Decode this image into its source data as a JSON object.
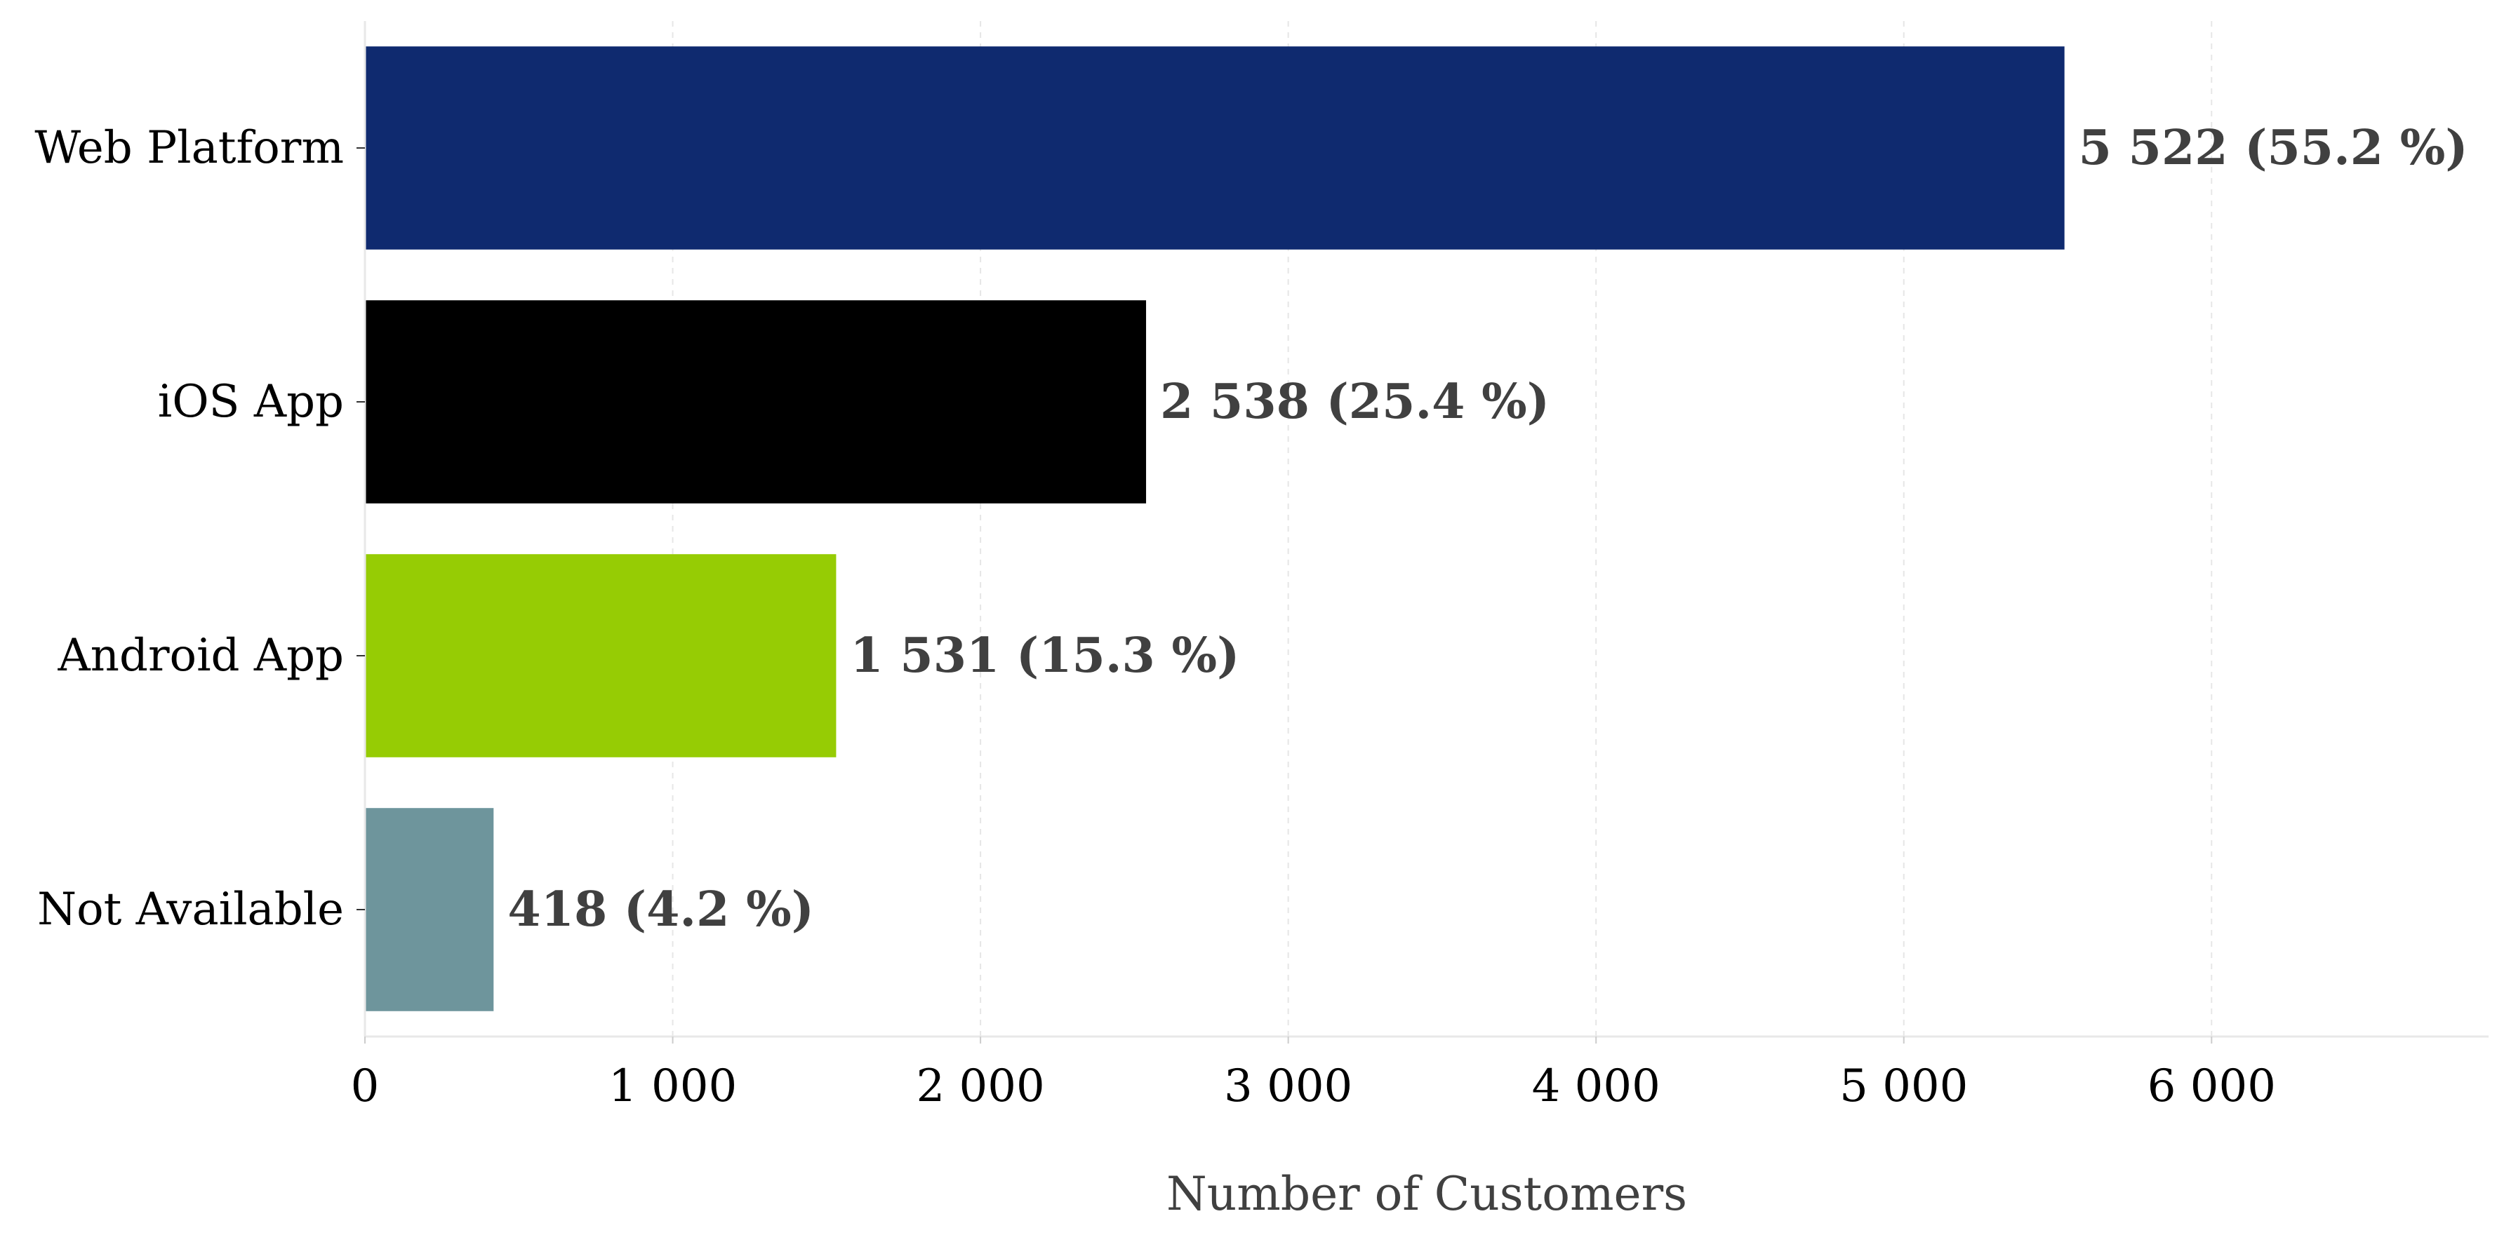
{
  "chart_data": {
    "type": "bar",
    "orientation": "horizontal",
    "categories": [
      "Web Platform",
      "iOS App",
      "Android App",
      "Not Available"
    ],
    "values": [
      5522,
      2538,
      1531,
      418
    ],
    "value_labels": [
      "5 522 (55.2 %)",
      "2 538 (25.4 %)",
      "1 531 (15.3 %)",
      "418 (4.2 %)"
    ],
    "colors": [
      "#0f2a6f",
      "#000000",
      "#96cc04",
      "#6e959c"
    ],
    "xlabel": "Number of Customers",
    "ylabel": "",
    "xlim": [
      0,
      6900
    ],
    "xticks": [
      0,
      1000,
      2000,
      3000,
      4000,
      5000,
      6000
    ],
    "xtick_labels": [
      "0",
      "1 000",
      "2 000",
      "3 000",
      "4 000",
      "5 000",
      "6 000"
    ],
    "grid": "vertical dashed",
    "legend": "none"
  }
}
